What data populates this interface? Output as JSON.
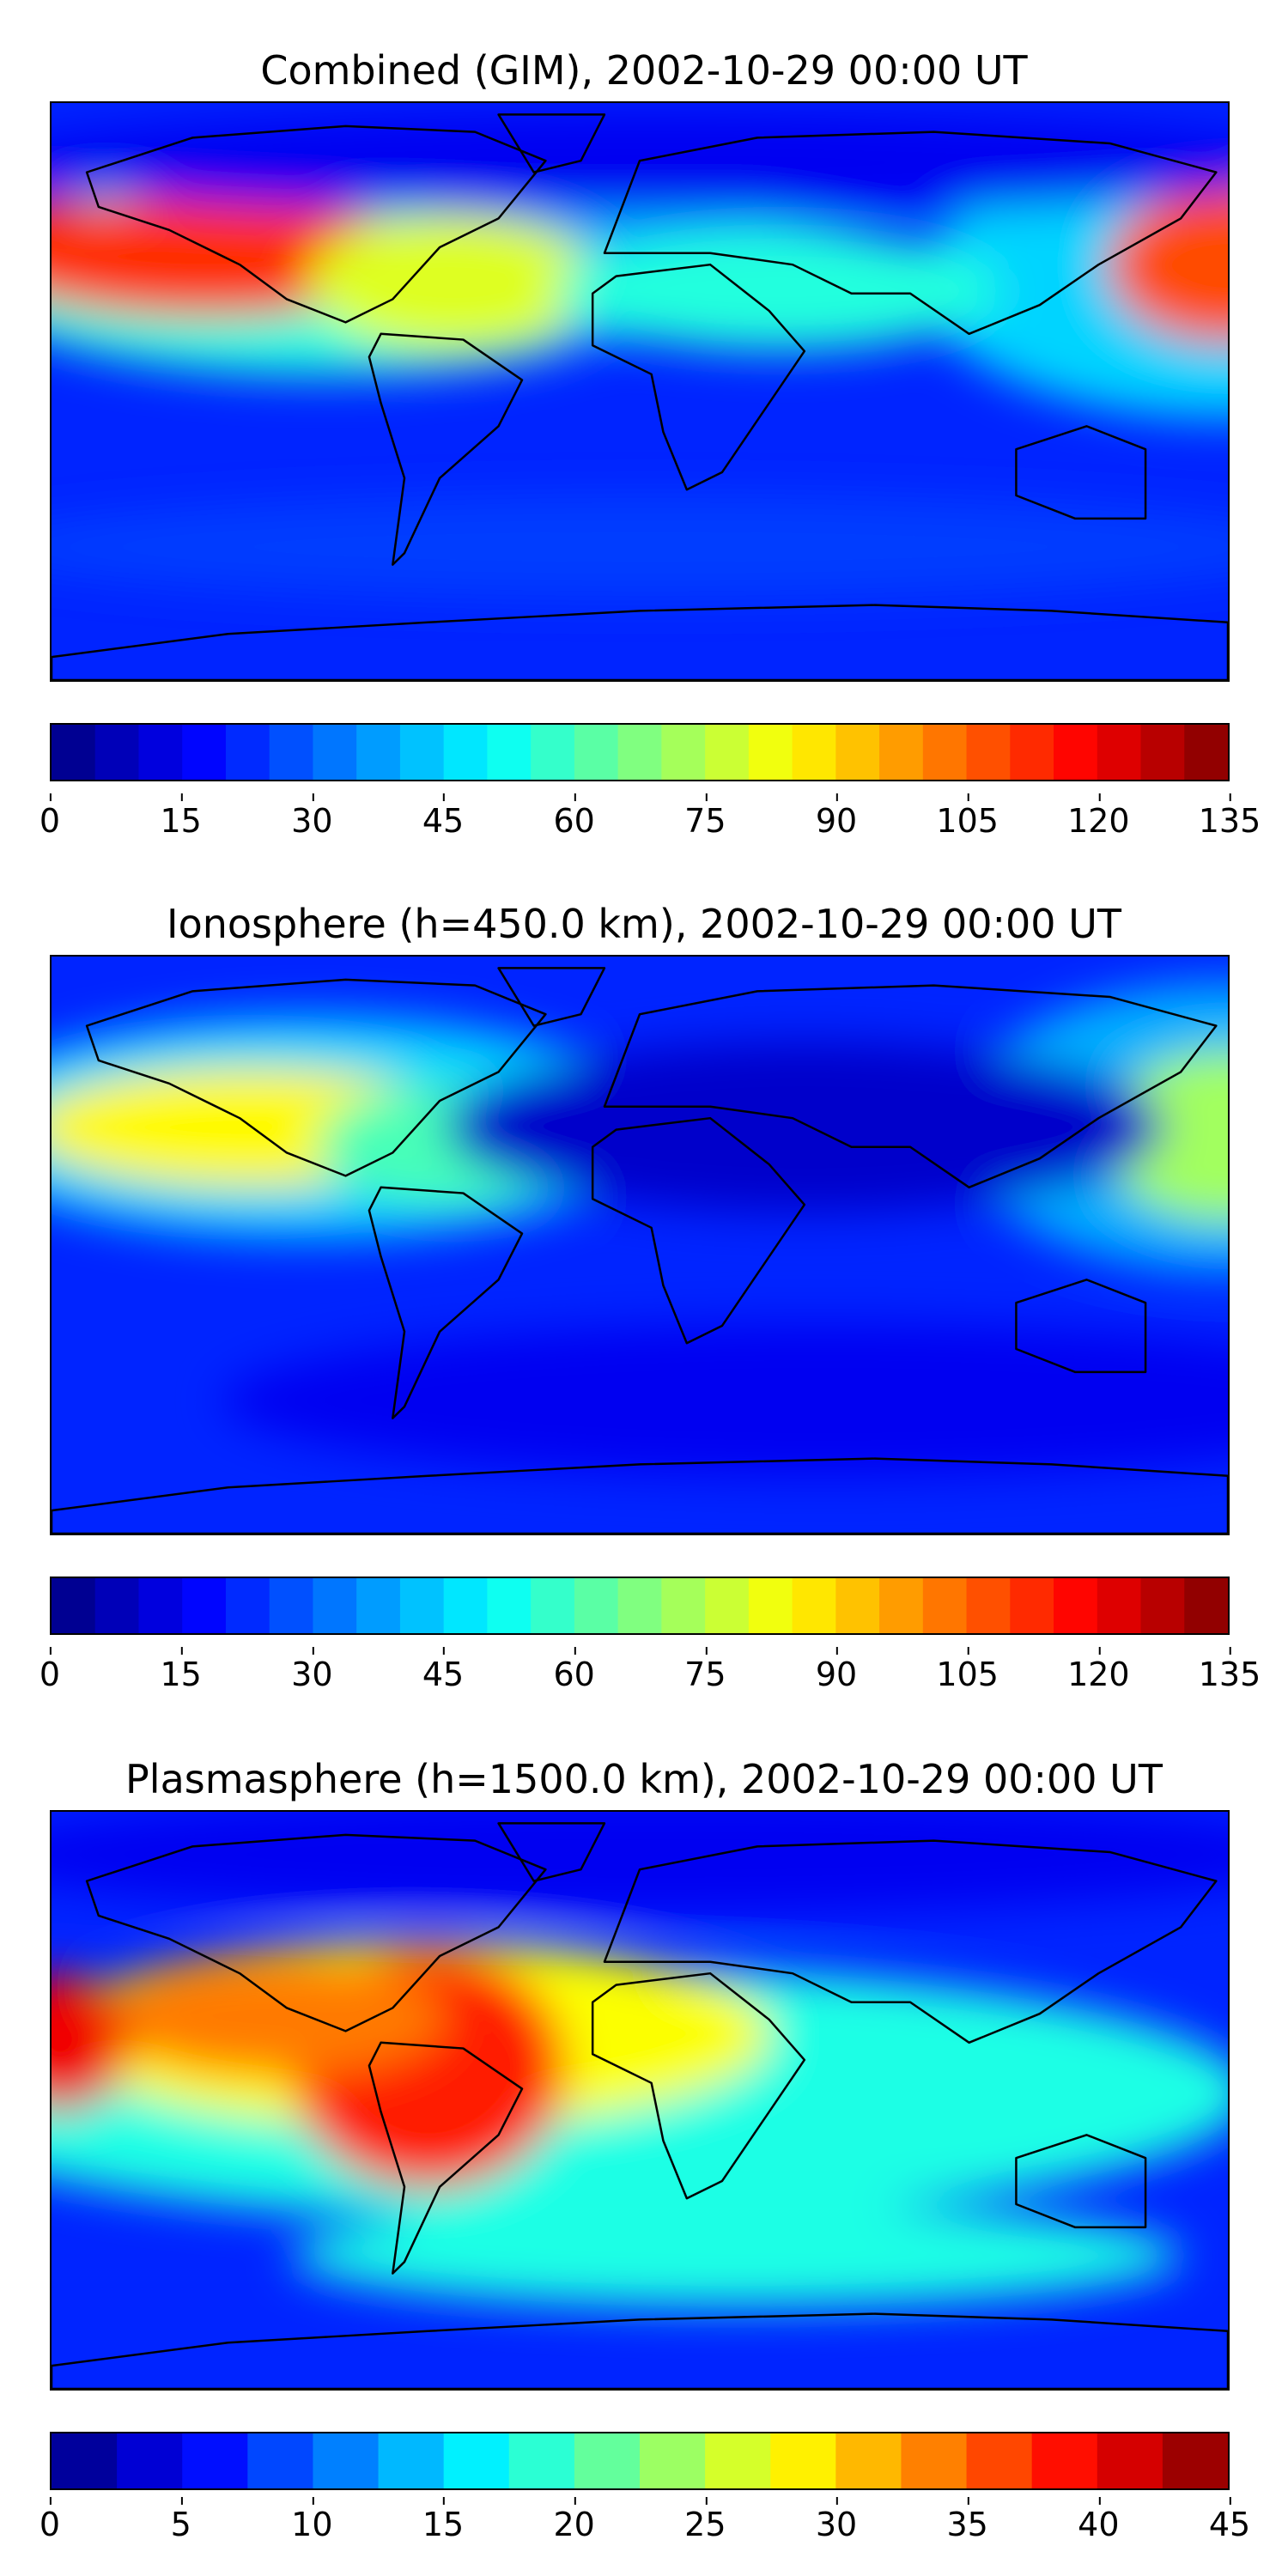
{
  "chart_data": [
    {
      "type": "heatmap",
      "title": "Combined (GIM), 2002-10-29 00:00 UT",
      "xlabel": "",
      "ylabel": "",
      "grid": false,
      "colormap": "jet",
      "colorbar": {
        "range": [
          0,
          135
        ],
        "levels": 27,
        "ticks": [
          0,
          15,
          30,
          45,
          60,
          75,
          90,
          105,
          120,
          135
        ]
      },
      "features": [
        {
          "region": "equatorial Pacific (west of South America)",
          "level": 112
        },
        {
          "region": "western Pacific (east of Philippines)",
          "level": 108
        },
        {
          "region": "northern South America",
          "level": 80
        },
        {
          "region": "equatorial Atlantic / Africa",
          "level": 55
        },
        {
          "region": "northern mid-latitudes",
          "level": 15
        },
        {
          "region": "southern high latitudes",
          "level": 25
        }
      ]
    },
    {
      "type": "heatmap",
      "title": "Ionosphere  (h=450.0 km), 2002-10-29 00:00 UT",
      "xlabel": "",
      "ylabel": "",
      "grid": false,
      "colormap": "jet",
      "colorbar": {
        "range": [
          0,
          135
        ],
        "levels": 27,
        "ticks": [
          0,
          15,
          30,
          45,
          60,
          75,
          90,
          105,
          120,
          135
        ]
      },
      "features": [
        {
          "region": "equatorial Pacific (west of South America)",
          "level": 85
        },
        {
          "region": "western Pacific",
          "level": 72
        },
        {
          "region": "northern South America",
          "level": 60
        },
        {
          "region": "Africa / Asia",
          "level": 10
        },
        {
          "region": "southern Pacific",
          "level": 15
        }
      ]
    },
    {
      "type": "heatmap",
      "title": "Plasmasphere (h=1500.0 km), 2002-10-29 00:00 UT",
      "xlabel": "",
      "ylabel": "",
      "grid": false,
      "colormap": "jet",
      "colorbar": {
        "range": [
          0,
          45
        ],
        "levels": 18,
        "ticks": [
          0,
          5,
          10,
          15,
          20,
          25,
          30,
          35,
          40,
          45
        ]
      },
      "features": [
        {
          "region": "central South America",
          "level": 38
        },
        {
          "region": "eastern Pacific",
          "level": 34
        },
        {
          "region": "western edge of Pacific",
          "level": 40
        },
        {
          "region": "southern mid-latitudes",
          "level": 18
        },
        {
          "region": "northern high latitudes",
          "level": 5
        }
      ]
    }
  ]
}
